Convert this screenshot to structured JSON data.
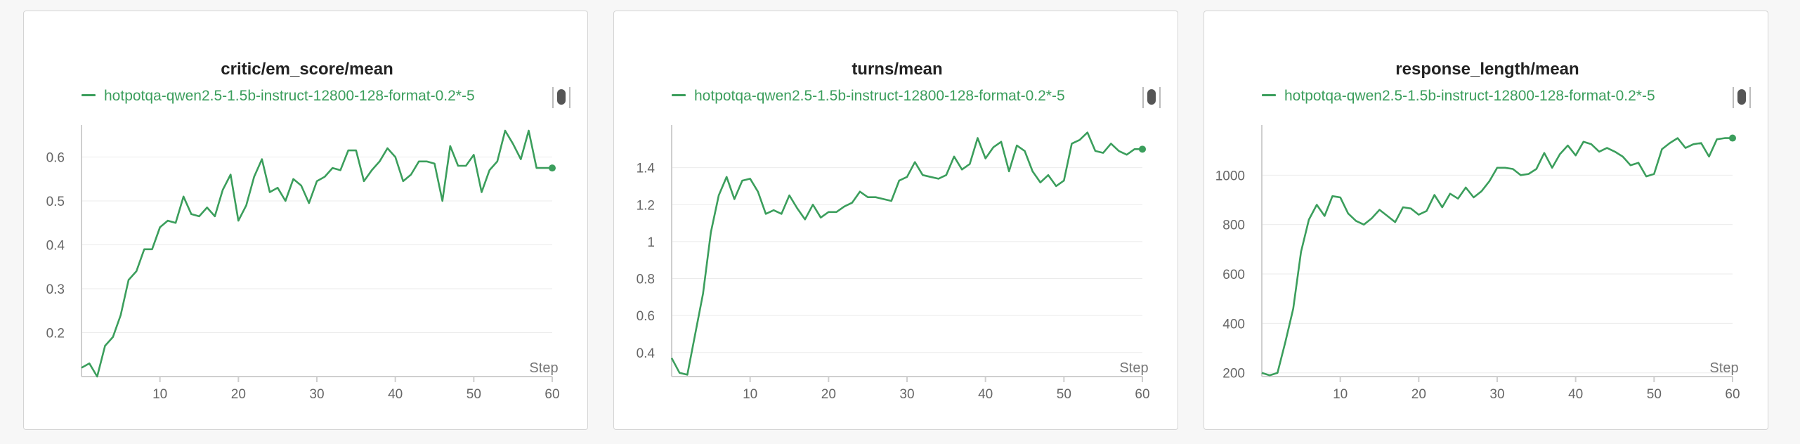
{
  "colors": {
    "series": "#3b9e5c",
    "grid": "#ebebeb",
    "axis": "#cfcfcf",
    "text": "#222222",
    "tick": "#666666"
  },
  "legend_icon": "scroll-handle-icon",
  "chart_data": [
    {
      "type": "line",
      "title": "critic/em_score/mean",
      "xlabel": "Step",
      "ylabel": "",
      "xlim": [
        0,
        60
      ],
      "ylim": [
        0.1,
        0.66
      ],
      "xticks": [
        10,
        20,
        30,
        40,
        50,
        60
      ],
      "xtick_labels": [
        "10",
        "20",
        "30",
        "40",
        "50",
        "60"
      ],
      "yticks": [
        0.2,
        0.3,
        0.4,
        0.5,
        0.6
      ],
      "ytick_labels": [
        "0.2",
        "0.3",
        "0.4",
        "0.5",
        "0.6"
      ],
      "grid": true,
      "legend": "top",
      "series": [
        {
          "name": "hotpotqa-qwen2.5-1.5b-instruct-12800-128-format-0.2*-5",
          "x": [
            0,
            1,
            2,
            3,
            4,
            5,
            6,
            7,
            8,
            9,
            10,
            11,
            12,
            13,
            14,
            15,
            16,
            17,
            18,
            19,
            20,
            21,
            22,
            23,
            24,
            25,
            26,
            27,
            28,
            29,
            30,
            31,
            32,
            33,
            34,
            35,
            36,
            37,
            38,
            39,
            40,
            41,
            42,
            43,
            44,
            45,
            46,
            47,
            48,
            49,
            50,
            51,
            52,
            53,
            54,
            55,
            56,
            57,
            58,
            59,
            60
          ],
          "values": [
            0.12,
            0.13,
            0.1,
            0.17,
            0.19,
            0.24,
            0.32,
            0.34,
            0.39,
            0.39,
            0.44,
            0.455,
            0.45,
            0.51,
            0.47,
            0.465,
            0.485,
            0.465,
            0.525,
            0.56,
            0.455,
            0.49,
            0.555,
            0.595,
            0.52,
            0.53,
            0.5,
            0.55,
            0.535,
            0.495,
            0.545,
            0.555,
            0.575,
            0.57,
            0.615,
            0.615,
            0.545,
            0.57,
            0.59,
            0.62,
            0.6,
            0.545,
            0.56,
            0.59,
            0.59,
            0.585,
            0.5,
            0.625,
            0.58,
            0.58,
            0.605,
            0.52,
            0.57,
            0.59,
            0.66,
            0.63,
            0.595,
            0.66,
            0.575,
            0.575,
            0.575
          ]
        }
      ]
    },
    {
      "type": "line",
      "title": "turns/mean",
      "xlabel": "Step",
      "ylabel": "",
      "xlim": [
        0,
        60
      ],
      "ylim": [
        0.27,
        1.6
      ],
      "xticks": [
        10,
        20,
        30,
        40,
        50,
        60
      ],
      "xtick_labels": [
        "10",
        "20",
        "30",
        "40",
        "50",
        "60"
      ],
      "yticks": [
        0.4,
        0.6,
        0.8,
        1.0,
        1.2,
        1.4
      ],
      "ytick_labels": [
        "0.4",
        "0.6",
        "0.8",
        "1",
        "1.2",
        "1.4"
      ],
      "grid": true,
      "legend": "top",
      "series": [
        {
          "name": "hotpotqa-qwen2.5-1.5b-instruct-12800-128-format-0.2*-5",
          "x": [
            0,
            1,
            2,
            3,
            4,
            5,
            6,
            7,
            8,
            9,
            10,
            11,
            12,
            13,
            14,
            15,
            16,
            17,
            18,
            19,
            20,
            21,
            22,
            23,
            24,
            25,
            26,
            27,
            28,
            29,
            30,
            31,
            32,
            33,
            34,
            35,
            36,
            37,
            38,
            39,
            40,
            41,
            42,
            43,
            44,
            45,
            46,
            47,
            48,
            49,
            50,
            51,
            52,
            53,
            54,
            55,
            56,
            57,
            58,
            59,
            60
          ],
          "values": [
            0.37,
            0.29,
            0.28,
            0.5,
            0.72,
            1.05,
            1.25,
            1.35,
            1.23,
            1.33,
            1.34,
            1.27,
            1.15,
            1.17,
            1.15,
            1.25,
            1.18,
            1.12,
            1.2,
            1.13,
            1.16,
            1.16,
            1.19,
            1.21,
            1.27,
            1.24,
            1.24,
            1.23,
            1.22,
            1.33,
            1.35,
            1.43,
            1.36,
            1.35,
            1.34,
            1.36,
            1.46,
            1.39,
            1.42,
            1.56,
            1.45,
            1.51,
            1.54,
            1.38,
            1.52,
            1.49,
            1.38,
            1.32,
            1.36,
            1.3,
            1.33,
            1.53,
            1.55,
            1.59,
            1.49,
            1.48,
            1.53,
            1.49,
            1.47,
            1.5,
            1.5
          ]
        }
      ]
    },
    {
      "type": "line",
      "title": "response_length/mean",
      "xlabel": "Step",
      "ylabel": "",
      "xlim": [
        0,
        60
      ],
      "ylim": [
        185,
        1180
      ],
      "xticks": [
        10,
        20,
        30,
        40,
        50,
        60
      ],
      "xtick_labels": [
        "10",
        "20",
        "30",
        "40",
        "50",
        "60"
      ],
      "yticks": [
        200,
        400,
        600,
        800,
        1000
      ],
      "ytick_labels": [
        "200",
        "400",
        "600",
        "800",
        "1000"
      ],
      "grid": true,
      "legend": "top",
      "series": [
        {
          "name": "hotpotqa-qwen2.5-1.5b-instruct-12800-128-format-0.2*-5",
          "x": [
            0,
            1,
            2,
            3,
            4,
            5,
            6,
            7,
            8,
            9,
            10,
            11,
            12,
            13,
            14,
            15,
            16,
            17,
            18,
            19,
            20,
            21,
            22,
            23,
            24,
            25,
            26,
            27,
            28,
            29,
            30,
            31,
            32,
            33,
            34,
            35,
            36,
            37,
            38,
            39,
            40,
            41,
            42,
            43,
            44,
            45,
            46,
            47,
            48,
            49,
            50,
            51,
            52,
            53,
            54,
            55,
            56,
            57,
            58,
            59,
            60
          ],
          "values": [
            200,
            190,
            200,
            325,
            460,
            690,
            820,
            880,
            835,
            915,
            910,
            845,
            815,
            800,
            825,
            860,
            835,
            810,
            870,
            865,
            840,
            855,
            920,
            870,
            925,
            905,
            950,
            910,
            935,
            975,
            1030,
            1030,
            1025,
            1000,
            1005,
            1025,
            1090,
            1030,
            1085,
            1120,
            1080,
            1135,
            1125,
            1095,
            1110,
            1095,
            1075,
            1040,
            1050,
            995,
            1005,
            1105,
            1130,
            1150,
            1110,
            1125,
            1130,
            1075,
            1145,
            1150,
            1150
          ]
        }
      ]
    }
  ]
}
